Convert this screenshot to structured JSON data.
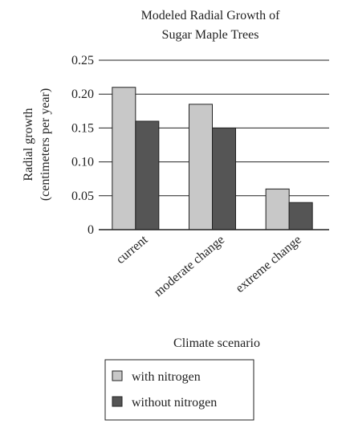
{
  "chart_data": {
    "type": "bar",
    "title": [
      "Modeled Radial Growth of",
      "Sugar Maple Trees"
    ],
    "xlabel": "Climate scenario",
    "ylabel": [
      "Radial growth",
      "(centimeters per year)"
    ],
    "categories": [
      "current",
      "moderate change",
      "extreme change"
    ],
    "series": [
      {
        "name": "with nitrogen",
        "values": [
          0.21,
          0.185,
          0.06
        ],
        "color": "#c8c8c8"
      },
      {
        "name": "without nitrogen",
        "values": [
          0.16,
          0.15,
          0.04
        ],
        "color": "#555555"
      }
    ],
    "yticks": [
      "0",
      "0.05",
      "0.10",
      "0.15",
      "0.20",
      "0.25"
    ],
    "ylim": [
      0,
      0.25
    ],
    "grid": true,
    "legend_position": "bottom"
  }
}
